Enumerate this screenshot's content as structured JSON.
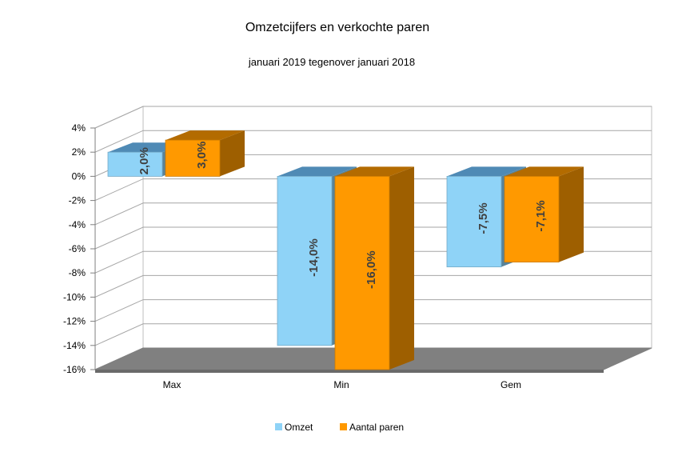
{
  "chart_data": {
    "type": "bar",
    "title": "Omzetcijfers en verkochte paren",
    "subtitle": "januari 2019 tegenover januari 2018",
    "categories": [
      "Max",
      "Min",
      "Gem"
    ],
    "series": [
      {
        "name": "Omzet",
        "values": [
          2.0,
          -14.0,
          -7.5
        ],
        "labels": [
          "2,0%",
          "-14,0%",
          "-7,5%"
        ],
        "color": "#8fd3f7"
      },
      {
        "name": "Aantal paren",
        "values": [
          3.0,
          -16.0,
          -7.1
        ],
        "labels": [
          "3,0%",
          "-16,0%",
          "-7,1%"
        ],
        "color": "#ff9900"
      }
    ],
    "yticks": [
      4,
      2,
      0,
      -2,
      -4,
      -6,
      -8,
      -10,
      -12,
      -14,
      -16
    ],
    "ytick_labels": [
      "4%",
      "2%",
      "0%",
      "-2%",
      "-4%",
      "-6%",
      "-8%",
      "-10%",
      "-12%",
      "-14%",
      "-16%"
    ],
    "ylim": [
      -16,
      4
    ],
    "grid": true,
    "legend_position": "bottom",
    "style": "3d-clustered-column"
  }
}
